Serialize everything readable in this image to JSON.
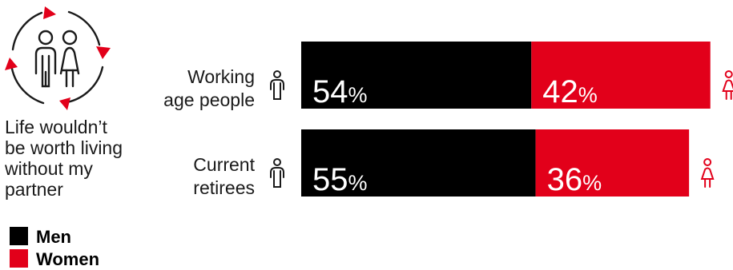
{
  "statement": [
    "Life wouldn’t",
    "be worth living",
    "without my",
    "partner"
  ],
  "colors": {
    "men": "#000000",
    "women": "#e2001a",
    "icon": "#1a1a1a",
    "arrows": "#e2001a"
  },
  "icons": {
    "hero": "couple-cycle-icon",
    "man": "man-icon",
    "woman": "woman-icon"
  },
  "chart_data": {
    "type": "bar",
    "orientation": "horizontal",
    "stacked": true,
    "categories": [
      [
        "Working",
        "age people"
      ],
      [
        "Current",
        "retirees"
      ]
    ],
    "series": [
      {
        "name": "Men",
        "values": [
          54,
          55
        ],
        "color": "#000000"
      },
      {
        "name": "Women",
        "values": [
          42,
          36
        ],
        "color": "#e2001a"
      }
    ],
    "unit": "%",
    "xlim": [
      0,
      100
    ],
    "grid": false,
    "legend_position": "bottom-left"
  }
}
